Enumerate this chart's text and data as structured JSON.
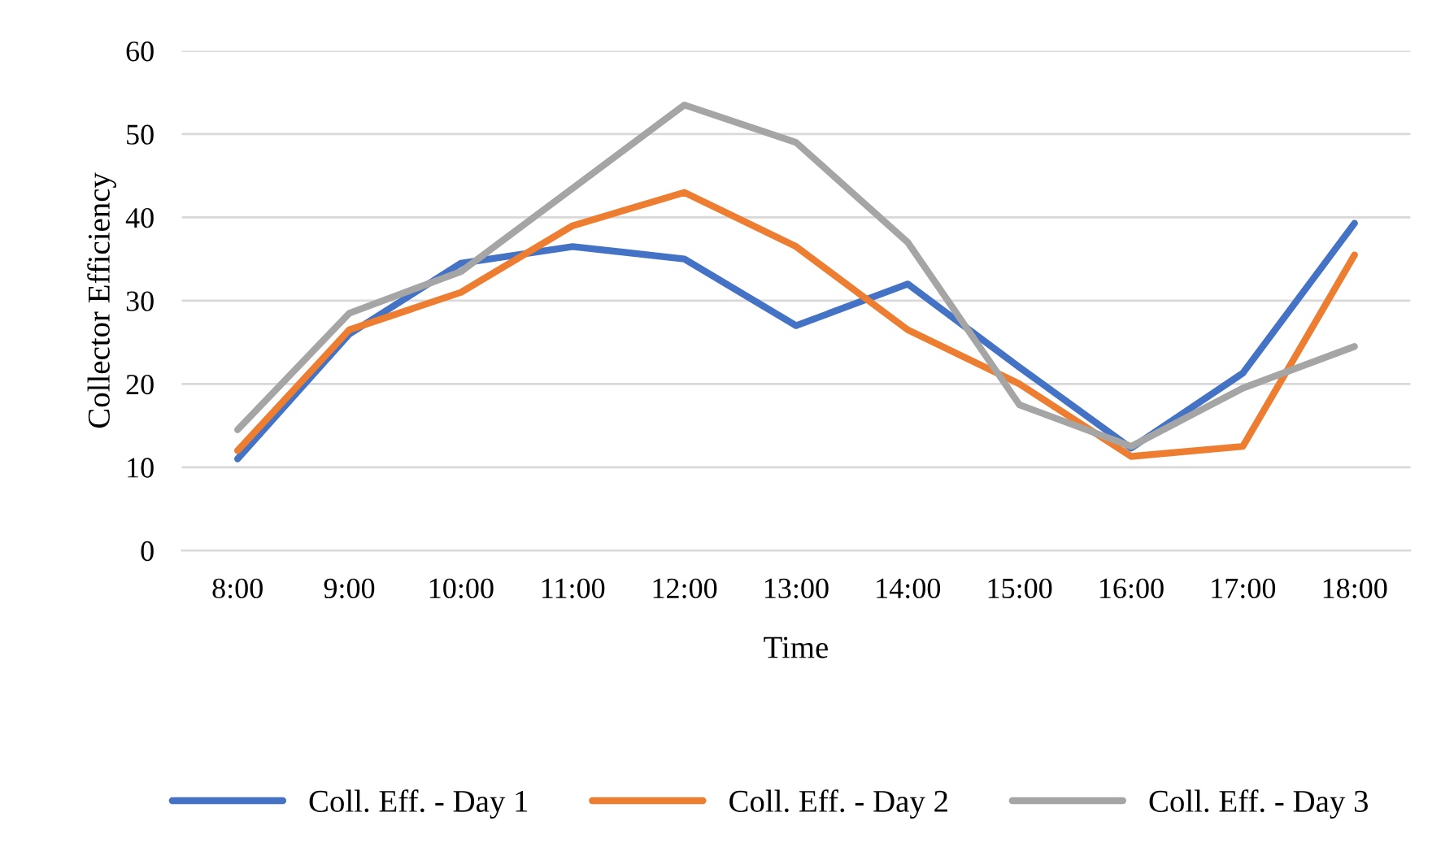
{
  "chart_data": {
    "type": "line",
    "xlabel": "Time",
    "ylabel": "Collector Efficiency",
    "categories": [
      "8:00",
      "9:00",
      "10:00",
      "11:00",
      "12:00",
      "13:00",
      "14:00",
      "15:00",
      "16:00",
      "17:00",
      "18:00"
    ],
    "series": [
      {
        "name": "Coll. Eff. - Day 1",
        "color": "#4472c4",
        "values": [
          11,
          26,
          34.5,
          36.5,
          35,
          27,
          32,
          22,
          12.3,
          21.3,
          39.3
        ]
      },
      {
        "name": "Coll. Eff. - Day 2",
        "color": "#ed7d31",
        "values": [
          12,
          26.5,
          31,
          39,
          43,
          36.5,
          26.5,
          20,
          11.3,
          12.5,
          35.5
        ]
      },
      {
        "name": "Coll. Eff. - Day 3",
        "color": "#a5a5a5",
        "values": [
          14.5,
          28.5,
          33.5,
          43.5,
          53.5,
          49,
          37,
          17.5,
          12.5,
          19.5,
          24.5
        ]
      }
    ],
    "ylim": [
      0,
      60
    ],
    "yticks": [
      0,
      10,
      20,
      30,
      40,
      50,
      60
    ],
    "grid": "y",
    "legend": "bottom",
    "marker": "none",
    "line_style": "solid"
  }
}
